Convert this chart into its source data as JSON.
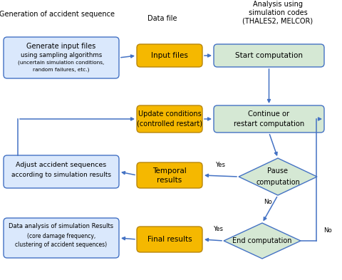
{
  "header_left": "Generation of accident sequence",
  "header_mid": "Data file",
  "header_right": "Analysis using\nsimulation codes\n(THALES2, MELCOR)",
  "arrow_color": "#4472C4",
  "box_blue_fill": "#DAE8FC",
  "box_blue_border": "#4472C4",
  "box_yellow_fill": "#F5B800",
  "box_yellow_border": "#B8860B",
  "box_green_fill": "#D5E8D4",
  "box_green_border": "#4472C4",
  "diamond_fill": "#D5E8D4",
  "diamond_border": "#4472C4",
  "bg_color": "#FFFFFF",
  "text_color": "#000000"
}
